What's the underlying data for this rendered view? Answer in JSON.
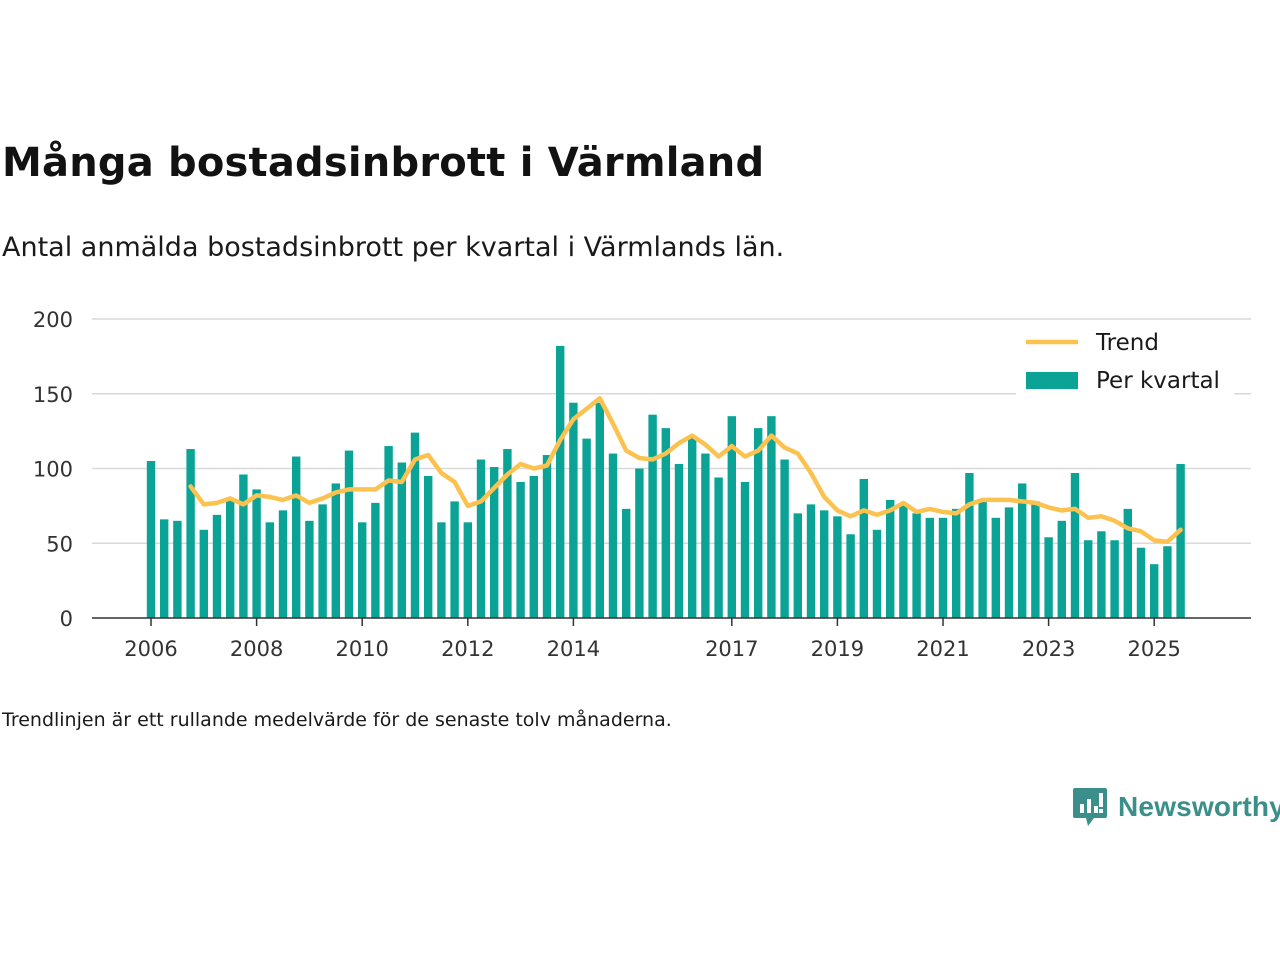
{
  "title": "Många bostadsinbrott i Värmland",
  "subtitle": "Antal anmälda bostadsinbrott per kvartal i Värmlands län.",
  "footnote": "Trendlinjen är ett rullande medelvärde för de senaste tolv månaderna.",
  "brand": "Newsworthy",
  "colors": {
    "bars": "#0aa396",
    "trend": "#fcc250",
    "grid": "#d9d9d9",
    "axis": "#333333"
  },
  "chart_data": {
    "type": "bar",
    "title": "Antal anmälda bostadsinbrott per kvartal i Värmlands län.",
    "xlabel": "",
    "ylabel": "",
    "ylim": [
      0,
      200
    ],
    "yticks": [
      0,
      50,
      100,
      150,
      200
    ],
    "xticks": [
      "2006",
      "2008",
      "2010",
      "2012",
      "2014",
      "2017",
      "2019",
      "2021",
      "2023",
      "2025"
    ],
    "legend": {
      "position": "top-right",
      "entries": [
        "Trend",
        "Per kvartal"
      ]
    },
    "categories": [
      "2006 Q1",
      "2006 Q2",
      "2006 Q3",
      "2006 Q4",
      "2007 Q1",
      "2007 Q2",
      "2007 Q3",
      "2007 Q4",
      "2008 Q1",
      "2008 Q2",
      "2008 Q3",
      "2008 Q4",
      "2009 Q1",
      "2009 Q2",
      "2009 Q3",
      "2009 Q4",
      "2010 Q1",
      "2010 Q2",
      "2010 Q3",
      "2010 Q4",
      "2011 Q1",
      "2011 Q2",
      "2011 Q3",
      "2011 Q4",
      "2012 Q1",
      "2012 Q2",
      "2012 Q3",
      "2012 Q4",
      "2013 Q1",
      "2013 Q2",
      "2013 Q3",
      "2013 Q4",
      "2014 Q1",
      "2014 Q2",
      "2014 Q3",
      "2014 Q4",
      "2015 Q1",
      "2015 Q2",
      "2015 Q3",
      "2015 Q4",
      "2016 Q1",
      "2016 Q2",
      "2016 Q3",
      "2016 Q4",
      "2017 Q1",
      "2017 Q2",
      "2017 Q3",
      "2017 Q4",
      "2018 Q1",
      "2018 Q2",
      "2018 Q3",
      "2018 Q4",
      "2019 Q1",
      "2019 Q2",
      "2019 Q3",
      "2019 Q4",
      "2020 Q1",
      "2020 Q2",
      "2020 Q3",
      "2020 Q4",
      "2021 Q1",
      "2021 Q2",
      "2021 Q3",
      "2021 Q4",
      "2022 Q1",
      "2022 Q2",
      "2022 Q3",
      "2022 Q4",
      "2023 Q1",
      "2023 Q2",
      "2023 Q3",
      "2023 Q4",
      "2024 Q1",
      "2024 Q2",
      "2024 Q3",
      "2024 Q4",
      "2025 Q1",
      "2025 Q2",
      "2025 Q3"
    ],
    "series": [
      {
        "name": "Per kvartal",
        "type": "bar",
        "values": [
          105,
          66,
          65,
          113,
          59,
          69,
          79,
          96,
          86,
          64,
          72,
          108,
          65,
          76,
          90,
          112,
          64,
          77,
          115,
          104,
          124,
          95,
          64,
          78,
          64,
          106,
          101,
          113,
          91,
          95,
          109,
          182,
          144,
          120,
          144,
          110,
          73,
          100,
          136,
          127,
          103,
          122,
          110,
          94,
          135,
          91,
          127,
          135,
          106,
          70,
          76,
          72,
          68,
          56,
          93,
          59,
          79,
          76,
          70,
          67,
          67,
          73,
          97,
          78,
          67,
          74,
          90,
          78,
          54,
          65,
          97,
          52,
          58,
          52,
          73,
          47,
          36,
          48,
          103
        ]
      },
      {
        "name": "Trend",
        "type": "line",
        "values": [
          null,
          null,
          null,
          88,
          76,
          77,
          80,
          76,
          82,
          81,
          79,
          82,
          77,
          80,
          84,
          86,
          86,
          86,
          92,
          91,
          106,
          109,
          97,
          91,
          75,
          78,
          87,
          96,
          103,
          100,
          102,
          119,
          133,
          140,
          147,
          130,
          112,
          107,
          106,
          110,
          117,
          122,
          116,
          108,
          115,
          108,
          112,
          122,
          114,
          110,
          97,
          81,
          72,
          68,
          72,
          69,
          72,
          77,
          71,
          73,
          71,
          70,
          76,
          79,
          79,
          79,
          78,
          77,
          74,
          72,
          73,
          67,
          68,
          65,
          60,
          58,
          52,
          51,
          59
        ]
      }
    ]
  }
}
